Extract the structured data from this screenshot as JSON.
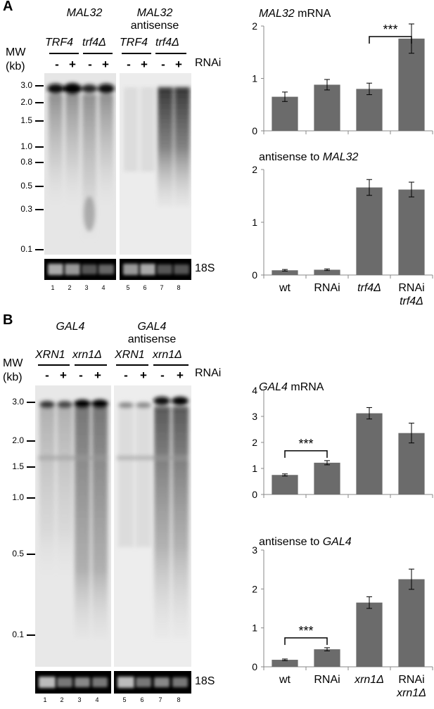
{
  "panelA": {
    "letter": "A",
    "title_left": "MAL32",
    "title_right_1": "MAL32",
    "title_right_2": "antisense",
    "genotypes": [
      "TRF4",
      "trf4Δ",
      "TRF4",
      "trf4Δ"
    ],
    "mw_label": "MW",
    "kb_label": "(kb)",
    "rnai_label": "RNAi",
    "minus": "-",
    "plus": "+",
    "mw_markers": [
      "3.0",
      "2.0",
      "1.5",
      "1.0",
      "0.8",
      "0.5",
      "0.3",
      "0.1"
    ],
    "loading_label": "18S",
    "lanes": [
      "1",
      "2",
      "3",
      "4",
      "5",
      "6",
      "7",
      "8"
    ]
  },
  "panelB": {
    "letter": "B",
    "title_left": "GAL4",
    "title_right_1": "GAL4",
    "title_right_2": "antisense",
    "genotypes": [
      "XRN1",
      "xrn1Δ",
      "XRN1",
      "xrn1Δ"
    ],
    "mw_label": "MW",
    "kb_label": "(kb)",
    "rnai_label": "RNAi",
    "minus": "-",
    "plus": "+",
    "mw_markers": [
      "3.0",
      "2.0",
      "1.5",
      "1.0",
      "0.5",
      "0.1"
    ],
    "loading_label": "18S",
    "lanes": [
      "1",
      "2",
      "3",
      "4",
      "5",
      "6",
      "7",
      "8"
    ]
  },
  "chart_data": [
    {
      "type": "bar",
      "title_italic": "MAL32",
      "title_rest": " mRNA",
      "categories": [
        "wt",
        "RNAi",
        "trf4Δ",
        "RNAi trf4Δ"
      ],
      "values": [
        0.65,
        0.88,
        0.8,
        1.76
      ],
      "errors": [
        0.09,
        0.1,
        0.11,
        0.28
      ],
      "ylim": [
        0,
        2
      ],
      "yticks": [
        "0",
        "1",
        "2"
      ],
      "significance": {
        "label": "***",
        "between": [
          2,
          3
        ]
      },
      "color": "#6b6b6b",
      "show_x_labels": false
    },
    {
      "type": "bar",
      "title_rest": "antisense to ",
      "title_italic": "MAL32",
      "categories": [
        "wt",
        "RNAi",
        "trf4Δ",
        "RNAi trf4Δ"
      ],
      "x_labels": [
        [
          "wt"
        ],
        [
          "RNAi"
        ],
        [
          "trf4Δ"
        ],
        [
          "RNAi",
          "trf4Δ"
        ]
      ],
      "values": [
        0.09,
        0.1,
        1.66,
        1.62
      ],
      "errors": [
        0.015,
        0.015,
        0.15,
        0.14
      ],
      "ylim": [
        0,
        2
      ],
      "yticks": [
        "0",
        "1",
        "2"
      ],
      "color": "#6b6b6b",
      "show_x_labels": true
    },
    {
      "type": "bar",
      "title_italic": "GAL4",
      "title_rest": " mRNA",
      "categories": [
        "wt",
        "RNAi",
        "xrn1Δ",
        "RNAi xrn1Δ"
      ],
      "values": [
        0.75,
        1.22,
        3.12,
        2.36
      ],
      "errors": [
        0.04,
        0.08,
        0.22,
        0.38
      ],
      "ylim": [
        0,
        4
      ],
      "yticks": [
        "0",
        "1",
        "2",
        "3",
        "4"
      ],
      "significance": {
        "label": "***",
        "between": [
          0,
          1
        ]
      },
      "color": "#6b6b6b",
      "show_x_labels": false
    },
    {
      "type": "bar",
      "title_rest": "antisense to ",
      "title_italic": "GAL4",
      "categories": [
        "wt",
        "RNAi",
        "xrn1Δ",
        "RNAi xrn1Δ"
      ],
      "x_labels": [
        [
          "wt"
        ],
        [
          "RNAi"
        ],
        [
          "xrn1Δ"
        ],
        [
          "RNAi",
          "xrn1Δ"
        ]
      ],
      "values": [
        0.18,
        0.45,
        1.65,
        2.25
      ],
      "errors": [
        0.02,
        0.04,
        0.15,
        0.26
      ],
      "ylim": [
        0,
        3
      ],
      "yticks": [
        "0",
        "1",
        "2",
        "3"
      ],
      "significance": {
        "label": "***",
        "between": [
          0,
          1
        ]
      },
      "color": "#6b6b6b",
      "show_x_labels": true
    }
  ]
}
